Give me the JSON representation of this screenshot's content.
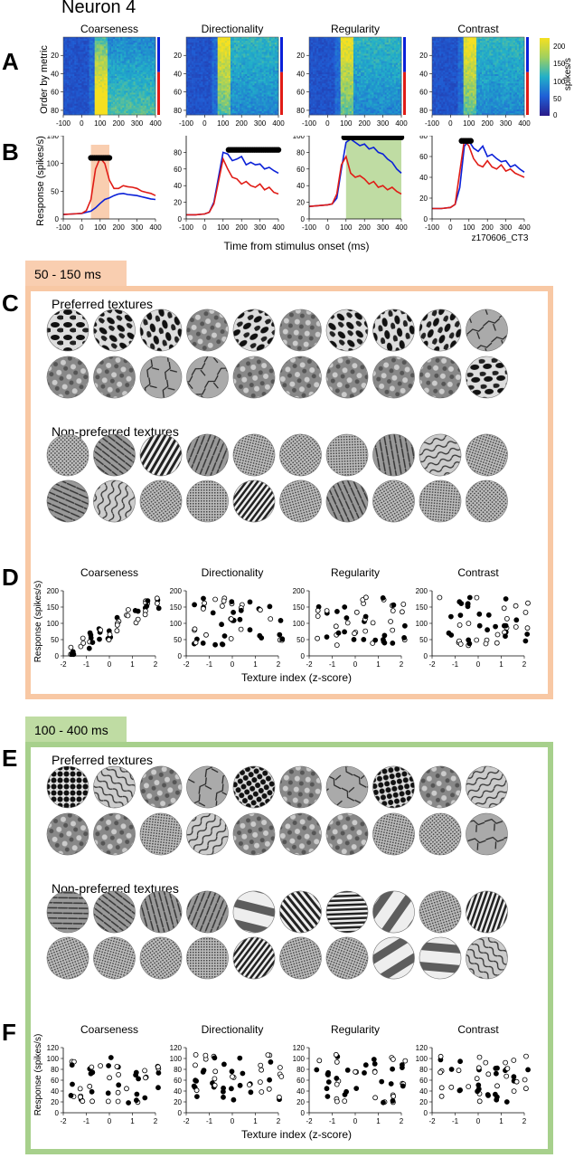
{
  "title": "Neuron 4",
  "panel_letters": {
    "A": "A",
    "B": "B",
    "C": "C",
    "D": "D",
    "E": "E",
    "F": "F"
  },
  "metrics": [
    "Coarseness",
    "Directionality",
    "Regularity",
    "Contrast"
  ],
  "colors": {
    "orange_fill": "#f9ceb0",
    "orange_border": "#f8c8a4",
    "green_fill": "#bfdca3",
    "green_border": "#a7d08c",
    "blue": "#0a20d8",
    "red": "#e01c16"
  },
  "panel_a": {
    "ylabel": "Order by metric",
    "yticks": [
      "20",
      "40",
      "60",
      "80"
    ],
    "xticks": [
      "-100",
      "0",
      "100",
      "200",
      "300",
      "400"
    ],
    "colorbar_ticks": [
      "200",
      "150",
      "100",
      "50",
      "0"
    ],
    "colorbar_label": "spikes/s"
  },
  "panel_b": {
    "ylabel": "Response (spikes/s)",
    "xlabel": "Time from stimulus onset (ms)",
    "xticks": [
      "-100",
      "0",
      "100",
      "200",
      "300",
      "400"
    ],
    "id": "z170606_CT3"
  },
  "window1": {
    "label": "50 - 150 ms",
    "preferred": "Preferred textures",
    "nonpreferred": "Non-preferred textures"
  },
  "window2": {
    "label": "100 - 400 ms",
    "preferred": "Preferred textures",
    "nonpreferred": "Non-preferred textures"
  },
  "panel_d": {
    "ylabel": "Response (spikes/s)",
    "xlabel": "Texture index (z-score)",
    "xticks": [
      "-2",
      "-1",
      "0",
      "1",
      "2"
    ]
  },
  "panel_f": {
    "ylabel": "Response (spikes/s)",
    "xlabel": "Texture index (z-score)",
    "xticks": [
      "-2",
      "-1",
      "0",
      "1",
      "2"
    ]
  },
  "chart_data": [
    {
      "type": "heatmap",
      "panel": "A",
      "metric": "Coarseness",
      "xlim": [
        -100,
        400
      ],
      "ylim": [
        0,
        85
      ],
      "yticks": [
        20,
        40,
        60,
        80
      ],
      "colorbar_range": [
        0,
        200
      ],
      "colorbar_ticks": [
        0,
        50,
        100,
        150,
        200
      ]
    },
    {
      "type": "heatmap",
      "panel": "A",
      "metric": "Directionality",
      "xlim": [
        -100,
        400
      ],
      "ylim": [
        0,
        85
      ]
    },
    {
      "type": "heatmap",
      "panel": "A",
      "metric": "Regularity",
      "xlim": [
        -100,
        400
      ],
      "ylim": [
        0,
        85
      ]
    },
    {
      "type": "heatmap",
      "panel": "A",
      "metric": "Contrast",
      "xlim": [
        -100,
        400
      ],
      "ylim": [
        0,
        85
      ]
    },
    {
      "type": "line",
      "panel": "B",
      "metric": "Coarseness",
      "ylim": [
        0,
        150
      ],
      "yticks": [
        0,
        50,
        100,
        150
      ],
      "xlim": [
        -100,
        400
      ],
      "window": [
        50,
        150
      ],
      "x": [
        -100,
        -50,
        0,
        25,
        50,
        75,
        100,
        125,
        150,
        175,
        200,
        225,
        250,
        275,
        300,
        325,
        350,
        375,
        400
      ],
      "series": [
        {
          "name": "blue",
          "values": [
            8,
            9,
            10,
            12,
            14,
            20,
            28,
            35,
            38,
            42,
            45,
            46,
            44,
            43,
            42,
            40,
            38,
            36,
            35
          ]
        },
        {
          "name": "red",
          "values": [
            8,
            9,
            10,
            15,
            35,
            90,
            110,
            100,
            70,
            55,
            55,
            60,
            58,
            57,
            55,
            50,
            48,
            46,
            42
          ]
        }
      ],
      "significance_range": [
        50,
        150
      ],
      "significance_y": 110
    },
    {
      "type": "line",
      "panel": "B",
      "metric": "Directionality",
      "ylim": [
        0,
        100
      ],
      "yticks": [
        0,
        20,
        40,
        60,
        80
      ],
      "xlim": [
        -100,
        400
      ],
      "x": [
        -100,
        -50,
        0,
        25,
        50,
        75,
        100,
        125,
        150,
        175,
        200,
        225,
        250,
        275,
        300,
        325,
        350,
        375,
        400
      ],
      "series": [
        {
          "name": "blue",
          "values": [
            5,
            5,
            6,
            8,
            20,
            50,
            80,
            78,
            70,
            72,
            75,
            65,
            68,
            65,
            66,
            60,
            62,
            58,
            55
          ]
        },
        {
          "name": "red",
          "values": [
            5,
            5,
            6,
            8,
            18,
            45,
            72,
            60,
            50,
            48,
            42,
            45,
            40,
            38,
            42,
            35,
            38,
            32,
            30
          ]
        }
      ],
      "significance_range": [
        130,
        400
      ],
      "significance_y": 83
    },
    {
      "type": "line",
      "panel": "B",
      "metric": "Regularity",
      "ylim": [
        0,
        100
      ],
      "yticks": [
        0,
        20,
        40,
        60,
        80,
        100
      ],
      "xlim": [
        -100,
        400
      ],
      "window": [
        100,
        400
      ],
      "x": [
        -100,
        -50,
        0,
        25,
        50,
        75,
        100,
        125,
        150,
        175,
        200,
        225,
        250,
        275,
        300,
        325,
        350,
        375,
        400
      ],
      "series": [
        {
          "name": "blue",
          "values": [
            15,
            16,
            17,
            18,
            25,
            60,
            92,
            96,
            92,
            88,
            90,
            84,
            86,
            80,
            78,
            72,
            68,
            60,
            55
          ]
        },
        {
          "name": "red",
          "values": [
            15,
            16,
            17,
            18,
            30,
            65,
            75,
            55,
            50,
            52,
            48,
            42,
            45,
            38,
            40,
            35,
            38,
            33,
            30
          ]
        }
      ],
      "significance_range": [
        90,
        400
      ],
      "significance_y": 98
    },
    {
      "type": "line",
      "panel": "B",
      "metric": "Contrast",
      "ylim": [
        0,
        80
      ],
      "yticks": [
        0,
        20,
        40,
        60,
        80
      ],
      "xlim": [
        -100,
        400
      ],
      "x": [
        -100,
        -50,
        0,
        25,
        50,
        75,
        100,
        125,
        150,
        175,
        200,
        225,
        250,
        275,
        300,
        325,
        350,
        375,
        400
      ],
      "series": [
        {
          "name": "blue",
          "values": [
            10,
            10,
            11,
            14,
            30,
            70,
            75,
            68,
            65,
            70,
            60,
            62,
            58,
            55,
            56,
            50,
            52,
            48,
            45
          ]
        },
        {
          "name": "red",
          "values": [
            10,
            10,
            11,
            14,
            45,
            76,
            70,
            58,
            52,
            50,
            56,
            50,
            48,
            52,
            46,
            48,
            44,
            42,
            40
          ]
        }
      ],
      "significance_range": [
        60,
        110
      ],
      "significance_y": 75
    },
    {
      "type": "scatter",
      "panel": "D",
      "metric": "Coarseness",
      "ylim": [
        0,
        200
      ],
      "yticks": [
        0,
        50,
        100,
        150,
        200
      ],
      "xlim": [
        -2,
        2
      ]
    },
    {
      "type": "scatter",
      "panel": "D",
      "metric": "Directionality",
      "ylim": [
        0,
        200
      ],
      "yticks": [
        0,
        50,
        100,
        150,
        200
      ],
      "xlim": [
        -2,
        2
      ]
    },
    {
      "type": "scatter",
      "panel": "D",
      "metric": "Regularity",
      "ylim": [
        0,
        200
      ],
      "yticks": [
        0,
        50,
        100,
        150,
        200
      ],
      "xlim": [
        -2,
        2
      ]
    },
    {
      "type": "scatter",
      "panel": "D",
      "metric": "Contrast",
      "ylim": [
        0,
        200
      ],
      "yticks": [
        0,
        50,
        100,
        150,
        200
      ],
      "xlim": [
        -2,
        2
      ]
    },
    {
      "type": "scatter",
      "panel": "F",
      "metric": "Coarseness",
      "ylim": [
        0,
        120
      ],
      "yticks": [
        0,
        20,
        40,
        60,
        80,
        100,
        120
      ],
      "xlim": [
        -2,
        2
      ]
    },
    {
      "type": "scatter",
      "panel": "F",
      "metric": "Directionality",
      "ylim": [
        0,
        120
      ],
      "yticks": [
        0,
        20,
        40,
        60,
        80,
        100,
        120
      ],
      "xlim": [
        -2,
        2
      ]
    },
    {
      "type": "scatter",
      "panel": "F",
      "metric": "Regularity",
      "ylim": [
        0,
        120
      ],
      "yticks": [
        0,
        20,
        40,
        60,
        80,
        100,
        120
      ],
      "xlim": [
        -2,
        2
      ]
    },
    {
      "type": "scatter",
      "panel": "F",
      "metric": "Contrast",
      "ylim": [
        0,
        120
      ],
      "yticks": [
        0,
        20,
        40,
        60,
        80,
        100,
        120
      ],
      "xlim": [
        -2,
        2
      ]
    }
  ]
}
